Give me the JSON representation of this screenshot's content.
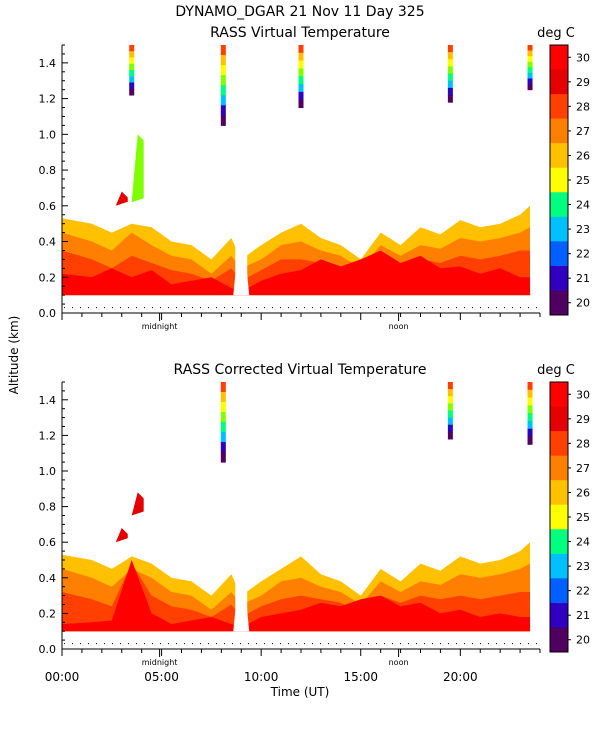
{
  "header": {
    "title": "DYNAMO_DGAR  21 Nov 11 Day 325"
  },
  "colorbar": {
    "unit_label": "deg C",
    "ticks": [
      "30",
      "29",
      "28",
      "27",
      "26",
      "25",
      "24",
      "23",
      "22",
      "21",
      "20"
    ],
    "colors": [
      "#ff0000",
      "#e40000",
      "#ff4000",
      "#ff8000",
      "#ffc000",
      "#ffff00",
      "#80ff00",
      "#00ff80",
      "#00c0ff",
      "#0060ff",
      "#3000c0",
      "#500060",
      "#000000"
    ]
  },
  "axes": {
    "ylabel": "Altitude (km)",
    "xlabel": "Time (UT)",
    "yticks": [
      "0.0",
      "0.2",
      "0.4",
      "0.6",
      "0.8",
      "1.0",
      "1.2",
      "1.4"
    ],
    "xticks": [
      "00:00",
      "05:00",
      "10:00",
      "15:00",
      "20:00"
    ],
    "markers": {
      "midnight": "midnight",
      "noon": "noon"
    }
  },
  "chart_data": [
    {
      "type": "heatmap",
      "title": "RASS Virtual Temperature",
      "xlabel": "",
      "ylabel": "Altitude (km)",
      "xlim": [
        0,
        24
      ],
      "ylim": [
        0,
        1.5
      ],
      "color_range": [
        20,
        30
      ],
      "layers": [
        {
          "value": 27,
          "color": "#ffc000",
          "profile": [
            [
              0,
              0.53
            ],
            [
              1.5,
              0.5
            ],
            [
              2.5,
              0.45
            ],
            [
              3.5,
              0.5
            ],
            [
              4.5,
              0.48
            ],
            [
              5.5,
              0.4
            ],
            [
              6.5,
              0.38
            ],
            [
              7.5,
              0.3
            ],
            [
              8.5,
              0.42
            ],
            [
              9.0,
              0.3
            ],
            [
              10,
              0.38
            ],
            [
              11,
              0.45
            ],
            [
              12,
              0.5
            ],
            [
              13,
              0.42
            ],
            [
              14,
              0.38
            ],
            [
              15,
              0.3
            ],
            [
              16,
              0.45
            ],
            [
              17,
              0.38
            ],
            [
              18,
              0.48
            ],
            [
              19,
              0.44
            ],
            [
              20,
              0.52
            ],
            [
              21,
              0.48
            ],
            [
              22,
              0.5
            ],
            [
              23,
              0.55
            ],
            [
              23.5,
              0.6
            ]
          ]
        },
        {
          "value": 28,
          "color": "#ff8000",
          "profile": [
            [
              0,
              0.45
            ],
            [
              1.5,
              0.4
            ],
            [
              2.5,
              0.35
            ],
            [
              3.5,
              0.45
            ],
            [
              4.5,
              0.38
            ],
            [
              5.5,
              0.32
            ],
            [
              6.5,
              0.3
            ],
            [
              7.5,
              0.22
            ],
            [
              8.5,
              0.32
            ],
            [
              9.0,
              0.25
            ],
            [
              10,
              0.3
            ],
            [
              11,
              0.38
            ],
            [
              12,
              0.4
            ],
            [
              13,
              0.35
            ],
            [
              14,
              0.32
            ],
            [
              15,
              0.25
            ],
            [
              16,
              0.38
            ],
            [
              17,
              0.32
            ],
            [
              18,
              0.38
            ],
            [
              19,
              0.36
            ],
            [
              20,
              0.42
            ],
            [
              21,
              0.4
            ],
            [
              22,
              0.42
            ],
            [
              23,
              0.45
            ],
            [
              23.5,
              0.48
            ]
          ]
        },
        {
          "value": 29,
          "color": "#ff4000",
          "profile": [
            [
              0,
              0.35
            ],
            [
              1.5,
              0.3
            ],
            [
              2.5,
              0.25
            ],
            [
              3.5,
              0.32
            ],
            [
              4.5,
              0.28
            ],
            [
              5.5,
              0.24
            ],
            [
              6.5,
              0.22
            ],
            [
              7.5,
              0.18
            ],
            [
              8.5,
              0.25
            ],
            [
              9.0,
              0.18
            ],
            [
              10,
              0.24
            ],
            [
              11,
              0.3
            ],
            [
              12,
              0.3
            ],
            [
              13,
              0.28
            ],
            [
              14,
              0.26
            ],
            [
              15,
              0.2
            ],
            [
              16,
              0.3
            ],
            [
              17,
              0.26
            ],
            [
              18,
              0.3
            ],
            [
              19,
              0.28
            ],
            [
              20,
              0.32
            ],
            [
              21,
              0.3
            ],
            [
              22,
              0.32
            ],
            [
              23,
              0.35
            ],
            [
              23.5,
              0.35
            ]
          ]
        },
        {
          "value": 30,
          "color": "#ff0000",
          "profile": [
            [
              0,
              0.22
            ],
            [
              1.5,
              0.2
            ],
            [
              2.5,
              0.25
            ],
            [
              3.5,
              0.2
            ],
            [
              4.5,
              0.24
            ],
            [
              5.5,
              0.16
            ],
            [
              6.5,
              0.18
            ],
            [
              7.5,
              0.2
            ],
            [
              8.5,
              0.14
            ],
            [
              9.0,
              0.12
            ],
            [
              10,
              0.18
            ],
            [
              11,
              0.22
            ],
            [
              12,
              0.24
            ],
            [
              13,
              0.3
            ],
            [
              14,
              0.26
            ],
            [
              15,
              0.3
            ],
            [
              16,
              0.35
            ],
            [
              17,
              0.28
            ],
            [
              18,
              0.32
            ],
            [
              19,
              0.25
            ],
            [
              20,
              0.26
            ],
            [
              21,
              0.22
            ],
            [
              22,
              0.25
            ],
            [
              23,
              0.2
            ],
            [
              23.5,
              0.2
            ]
          ]
        }
      ],
      "gaps": [
        [
          8.6,
          9.4
        ]
      ],
      "spikes": [
        {
          "x": 3.5,
          "y0": 1.22,
          "y1": 1.5,
          "min_value": 20
        },
        {
          "x": 8.1,
          "y0": 1.05,
          "y1": 1.5,
          "min_value": 20
        },
        {
          "x": 12.0,
          "y0": 1.15,
          "y1": 1.5,
          "min_value": 20
        },
        {
          "x": 19.5,
          "y0": 1.18,
          "y1": 1.5,
          "min_value": 20
        },
        {
          "x": 23.5,
          "y0": 1.25,
          "y1": 1.5,
          "min_value": 20
        }
      ],
      "patches": [
        {
          "x": 3.8,
          "y0": 0.62,
          "y1": 1.0,
          "value": 25
        },
        {
          "x": 3.0,
          "y0": 0.6,
          "y1": 0.68,
          "value": 29
        }
      ],
      "baseline_km": 0.1
    },
    {
      "type": "heatmap",
      "title": "RASS Corrected Virtual Temperature",
      "xlabel": "Time (UT)",
      "ylabel": "Altitude (km)",
      "xlim": [
        0,
        24
      ],
      "ylim": [
        0,
        1.5
      ],
      "color_range": [
        20,
        30
      ],
      "layers": [
        {
          "value": 27,
          "color": "#ffc000",
          "profile": [
            [
              0,
              0.53
            ],
            [
              1.5,
              0.5
            ],
            [
              2.5,
              0.45
            ],
            [
              3.5,
              0.52
            ],
            [
              4.5,
              0.48
            ],
            [
              5.5,
              0.4
            ],
            [
              6.5,
              0.38
            ],
            [
              7.5,
              0.3
            ],
            [
              8.5,
              0.42
            ],
            [
              9.0,
              0.3
            ],
            [
              10,
              0.38
            ],
            [
              11,
              0.45
            ],
            [
              12,
              0.52
            ],
            [
              13,
              0.42
            ],
            [
              14,
              0.38
            ],
            [
              15,
              0.3
            ],
            [
              16,
              0.45
            ],
            [
              17,
              0.38
            ],
            [
              18,
              0.48
            ],
            [
              19,
              0.44
            ],
            [
              20,
              0.52
            ],
            [
              21,
              0.48
            ],
            [
              22,
              0.5
            ],
            [
              23,
              0.55
            ],
            [
              23.5,
              0.6
            ]
          ]
        },
        {
          "value": 28,
          "color": "#ff8000",
          "profile": [
            [
              0,
              0.45
            ],
            [
              1.5,
              0.4
            ],
            [
              2.5,
              0.35
            ],
            [
              3.5,
              0.45
            ],
            [
              4.5,
              0.4
            ],
            [
              5.5,
              0.32
            ],
            [
              6.5,
              0.3
            ],
            [
              7.5,
              0.22
            ],
            [
              8.5,
              0.32
            ],
            [
              9.0,
              0.25
            ],
            [
              10,
              0.3
            ],
            [
              11,
              0.38
            ],
            [
              12,
              0.4
            ],
            [
              13,
              0.35
            ],
            [
              14,
              0.32
            ],
            [
              15,
              0.25
            ],
            [
              16,
              0.38
            ],
            [
              17,
              0.32
            ],
            [
              18,
              0.38
            ],
            [
              19,
              0.36
            ],
            [
              20,
              0.42
            ],
            [
              21,
              0.4
            ],
            [
              22,
              0.42
            ],
            [
              23,
              0.45
            ],
            [
              23.5,
              0.48
            ]
          ]
        },
        {
          "value": 29,
          "color": "#ff4000",
          "profile": [
            [
              0,
              0.32
            ],
            [
              1.5,
              0.28
            ],
            [
              2.5,
              0.24
            ],
            [
              3.5,
              0.48
            ],
            [
              4.5,
              0.3
            ],
            [
              5.5,
              0.24
            ],
            [
              6.5,
              0.22
            ],
            [
              7.5,
              0.18
            ],
            [
              8.5,
              0.25
            ],
            [
              9.0,
              0.18
            ],
            [
              10,
              0.24
            ],
            [
              11,
              0.28
            ],
            [
              12,
              0.3
            ],
            [
              13,
              0.28
            ],
            [
              14,
              0.26
            ],
            [
              15,
              0.2
            ],
            [
              16,
              0.3
            ],
            [
              17,
              0.26
            ],
            [
              18,
              0.3
            ],
            [
              19,
              0.28
            ],
            [
              20,
              0.3
            ],
            [
              21,
              0.28
            ],
            [
              22,
              0.3
            ],
            [
              23,
              0.32
            ],
            [
              23.5,
              0.32
            ]
          ]
        },
        {
          "value": 30,
          "color": "#ff0000",
          "profile": [
            [
              0,
              0.14
            ],
            [
              1.5,
              0.15
            ],
            [
              2.5,
              0.16
            ],
            [
              3.5,
              0.5
            ],
            [
              4.5,
              0.2
            ],
            [
              5.5,
              0.14
            ],
            [
              6.5,
              0.16
            ],
            [
              7.5,
              0.18
            ],
            [
              8.5,
              0.14
            ],
            [
              9.0,
              0.12
            ],
            [
              10,
              0.18
            ],
            [
              11,
              0.2
            ],
            [
              12,
              0.22
            ],
            [
              13,
              0.26
            ],
            [
              14,
              0.24
            ],
            [
              15,
              0.28
            ],
            [
              16,
              0.3
            ],
            [
              17,
              0.24
            ],
            [
              18,
              0.26
            ],
            [
              19,
              0.2
            ],
            [
              20,
              0.22
            ],
            [
              21,
              0.18
            ],
            [
              22,
              0.2
            ],
            [
              23,
              0.18
            ],
            [
              23.5,
              0.18
            ]
          ]
        }
      ],
      "gaps": [
        [
          8.6,
          9.4
        ]
      ],
      "spikes": [
        {
          "x": 8.1,
          "y0": 1.05,
          "y1": 1.5,
          "min_value": 20
        },
        {
          "x": 19.5,
          "y0": 1.18,
          "y1": 1.5,
          "min_value": 20
        },
        {
          "x": 23.5,
          "y0": 1.15,
          "y1": 1.5,
          "min_value": 20
        }
      ],
      "patches": [
        {
          "x": 3.8,
          "y0": 0.75,
          "y1": 0.88,
          "value": 29
        },
        {
          "x": 3.0,
          "y0": 0.6,
          "y1": 0.68,
          "value": 29
        }
      ],
      "baseline_km": 0.1
    }
  ]
}
